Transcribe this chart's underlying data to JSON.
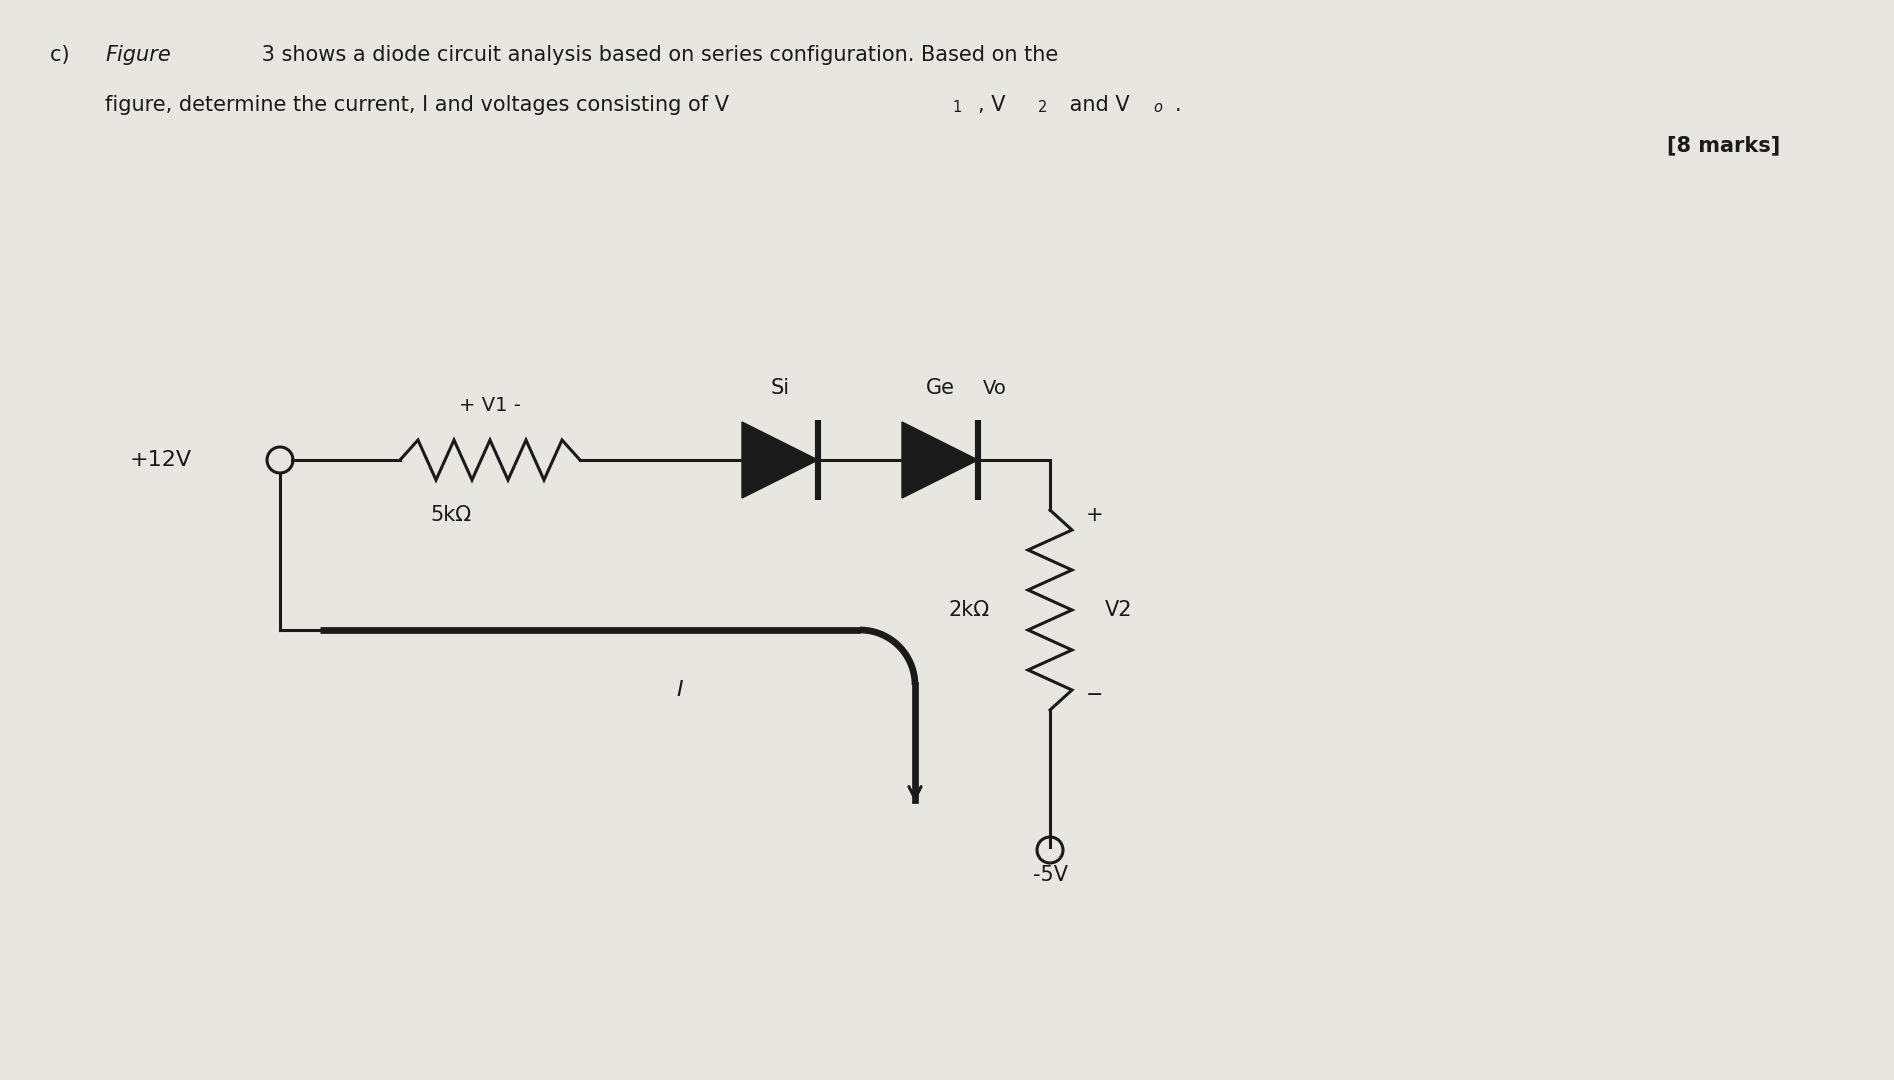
{
  "background_color": "#e8e6e0",
  "text_color": "#1a1a1a",
  "marks": "[8 marks]",
  "voltage_source": "+12V",
  "resistor1_label": "5kΩ",
  "resistor2_label": "2kΩ",
  "diode1_label": "Si",
  "diode2_label": "Ge",
  "v1_label": "+ V1 -",
  "v2_plus": "+",
  "v2_label": "V2",
  "v2_minus": "−",
  "vo_label": "Vo",
  "current_label": "I",
  "neg_voltage": "-5V",
  "title_c": "c)",
  "title_italic": "Figure",
  "title_rest1": " 3 shows a diode circuit analysis based on series configuration. Based on the",
  "title_line2": "figure, determine the current, I and voltages consisting of V",
  "title_subs": "1",
  "title_comma": ", V",
  "title_subs2": "2",
  "title_and": " and V",
  "title_subs3": "o",
  "title_dot": "."
}
